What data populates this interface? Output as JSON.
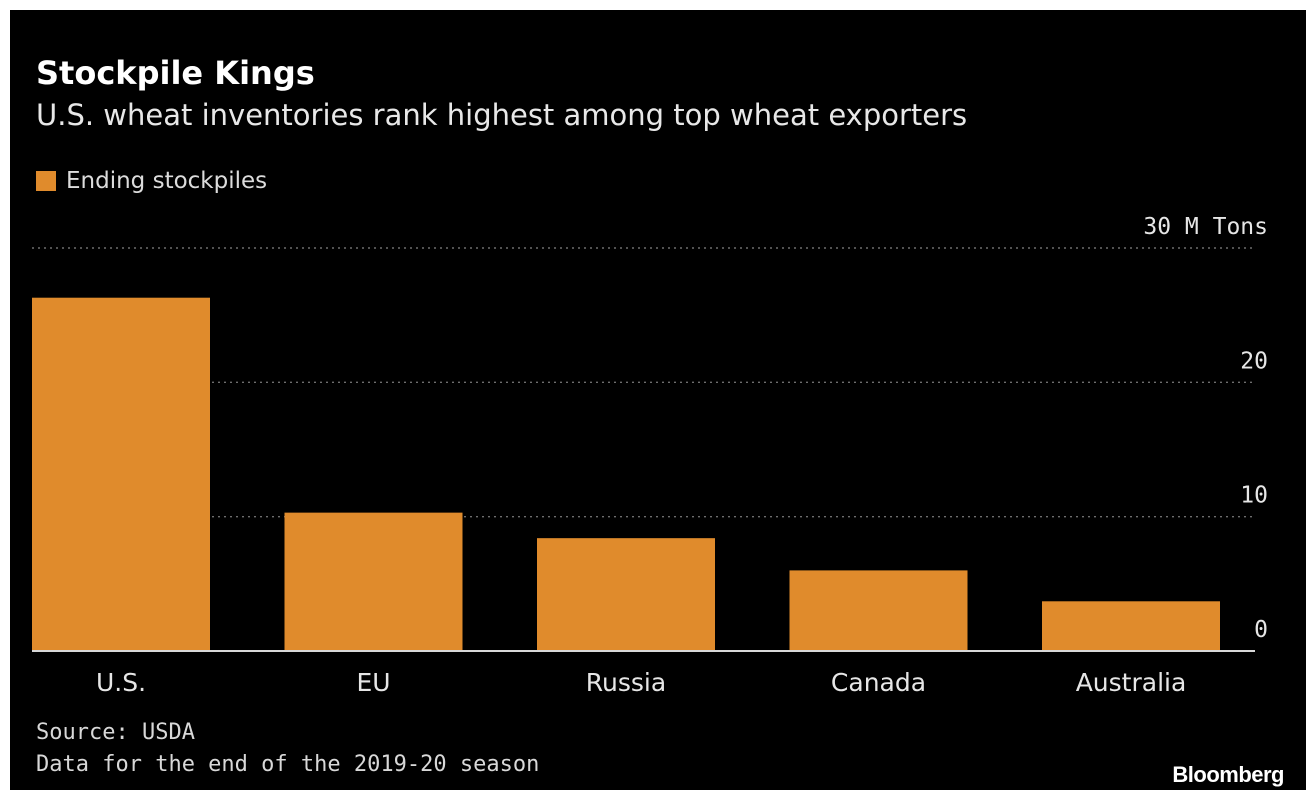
{
  "chart_data": {
    "type": "bar",
    "title": "Stockpile Kings",
    "subtitle": "U.S. wheat inventories rank highest among top wheat exporters",
    "legend": [
      {
        "name": "Ending stockpiles",
        "color": "#e08b2c"
      }
    ],
    "categories": [
      "U.S.",
      "EU",
      "Russia",
      "Canada",
      "Australia"
    ],
    "series": [
      {
        "name": "Ending stockpiles",
        "values": [
          26.3,
          10.3,
          8.4,
          6.0,
          3.7
        ]
      }
    ],
    "ylim": [
      0,
      30
    ],
    "yticks": [
      0,
      10,
      20,
      30
    ],
    "ytick_labels": [
      "0",
      "10",
      "20",
      "30 M Tons"
    ],
    "axis_position": "right",
    "grid": true,
    "legend_position": "top-left"
  },
  "footer": {
    "source": "Source: USDA",
    "note": "Data for the end of the 2019-20 season",
    "brand": "Bloomberg"
  },
  "colors": {
    "background": "#000000",
    "bar": "#e08b2c",
    "text": "#ffffff"
  }
}
